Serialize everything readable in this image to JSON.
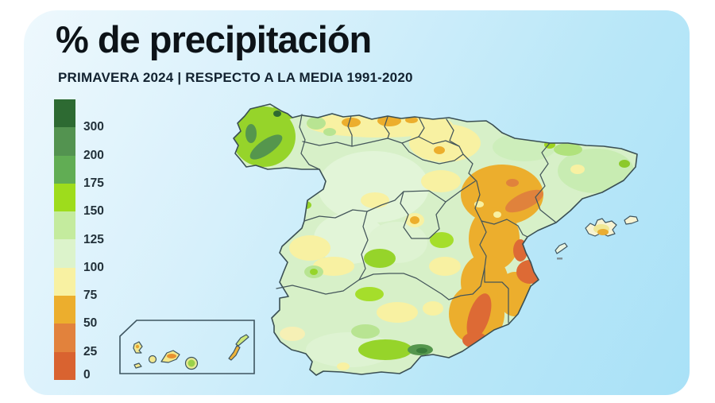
{
  "title": "% de precipitación",
  "subtitle": "PRIMAVERA 2024 | RESPECTO A LA MEDIA 1991-2020",
  "legend": {
    "labels": [
      "300",
      "200",
      "175",
      "150",
      "125",
      "100",
      "75",
      "50",
      "25",
      "0"
    ],
    "colors": [
      "#2d6a32",
      "#539350",
      "#61ad54",
      "#9edc1c",
      "#c4eb9e",
      "#dcf3cb",
      "#f8f1a2",
      "#ecae2d",
      "#e2823c",
      "#d96330"
    ]
  },
  "palette": {
    "outer_background": "#ffffff",
    "card_gradient_start": "#eef8fd",
    "card_gradient_end": "#a9e1f7",
    "map_border": "#3f5358"
  }
}
